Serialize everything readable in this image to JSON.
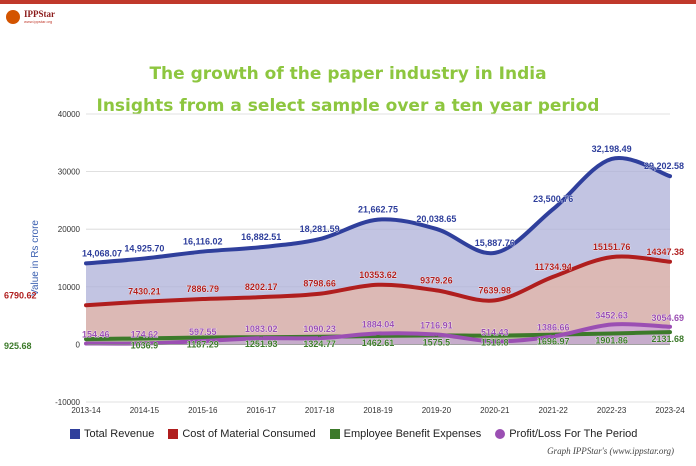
{
  "brand": {
    "name": "IPPStar",
    "tagline": "www.ippstar.org"
  },
  "credit": "Graph IPPStar's (www.ippstar.org)",
  "chart_data": {
    "type": "area",
    "title": "The growth of the paper industry in India",
    "subtitle": "Insights from a select sample over a ten year period",
    "ylabel": "Value in Rs crore",
    "xlabel": "",
    "ylim": [
      -10000,
      40000
    ],
    "yticks": [
      -10000,
      0,
      10000,
      20000,
      30000,
      40000
    ],
    "categories": [
      "2013-14",
      "2014-15",
      "2015-16",
      "2016-17",
      "2017-18",
      "2018-19",
      "2019-20",
      "2020-21",
      "2021-22",
      "2022-23",
      "2023-24"
    ],
    "series": [
      {
        "name": "Total Revenue",
        "color": "#2f3f9c",
        "fill": "#aeb0d8",
        "values": [
          14068.07,
          14925.7,
          16116.02,
          16882.51,
          18281.59,
          21662.75,
          20038.65,
          15887.76,
          23500.76,
          32198.49,
          29202.58
        ],
        "labels": [
          "14,068.07",
          "14,925.70",
          "16,116.02",
          "16,882.51",
          "18,281.59",
          "21,662.75",
          "20,038.65",
          "15,887.76",
          "23,500.76",
          "32,198.49",
          "29,202.58"
        ]
      },
      {
        "name": "Cost of Material Consumed",
        "color": "#b01e1e",
        "fill": "#e4b6a6",
        "values": [
          6790.62,
          7430.21,
          7886.79,
          8202.17,
          8798.66,
          10353.62,
          9379.26,
          7639.98,
          11734.94,
          15151.76,
          14347.38
        ],
        "labels": [
          "6790.62",
          "7430.21",
          "7886.79",
          "8202.17",
          "8798.66",
          "10353.62",
          "9379.26",
          "7639.98",
          "11734.94",
          "15151.76",
          "14347.38"
        ]
      },
      {
        "name": "Employee Benefit Expenses",
        "color": "#3c7a2a",
        "fill": "#9ec38a",
        "values": [
          925.68,
          1036.9,
          1187.29,
          1251.93,
          1324.77,
          1462.61,
          1575.5,
          1516.8,
          1696.97,
          1901.86,
          2131.68
        ],
        "labels": [
          "925.68",
          "1036.9",
          "1187.29",
          "1251.93",
          "1324.77",
          "1462.61",
          "1575.5",
          "1516.8",
          "1696.97",
          "1901.86",
          "2131.68"
        ]
      },
      {
        "name": "Profit/Loss For The Period",
        "color": "#9b4fb3",
        "fill": "#cfa6de",
        "values": [
          154.46,
          174.62,
          597.55,
          1083.02,
          1090.23,
          1884.04,
          1716.91,
          514.43,
          1386.66,
          3452.63,
          3054.69
        ],
        "labels": [
          "154.46",
          "174.62",
          "597.55",
          "1083.02",
          "1090.23",
          "1884.04",
          "1716.91",
          "514.43",
          "1386.66",
          "3452.63",
          "3054.69"
        ]
      }
    ]
  }
}
